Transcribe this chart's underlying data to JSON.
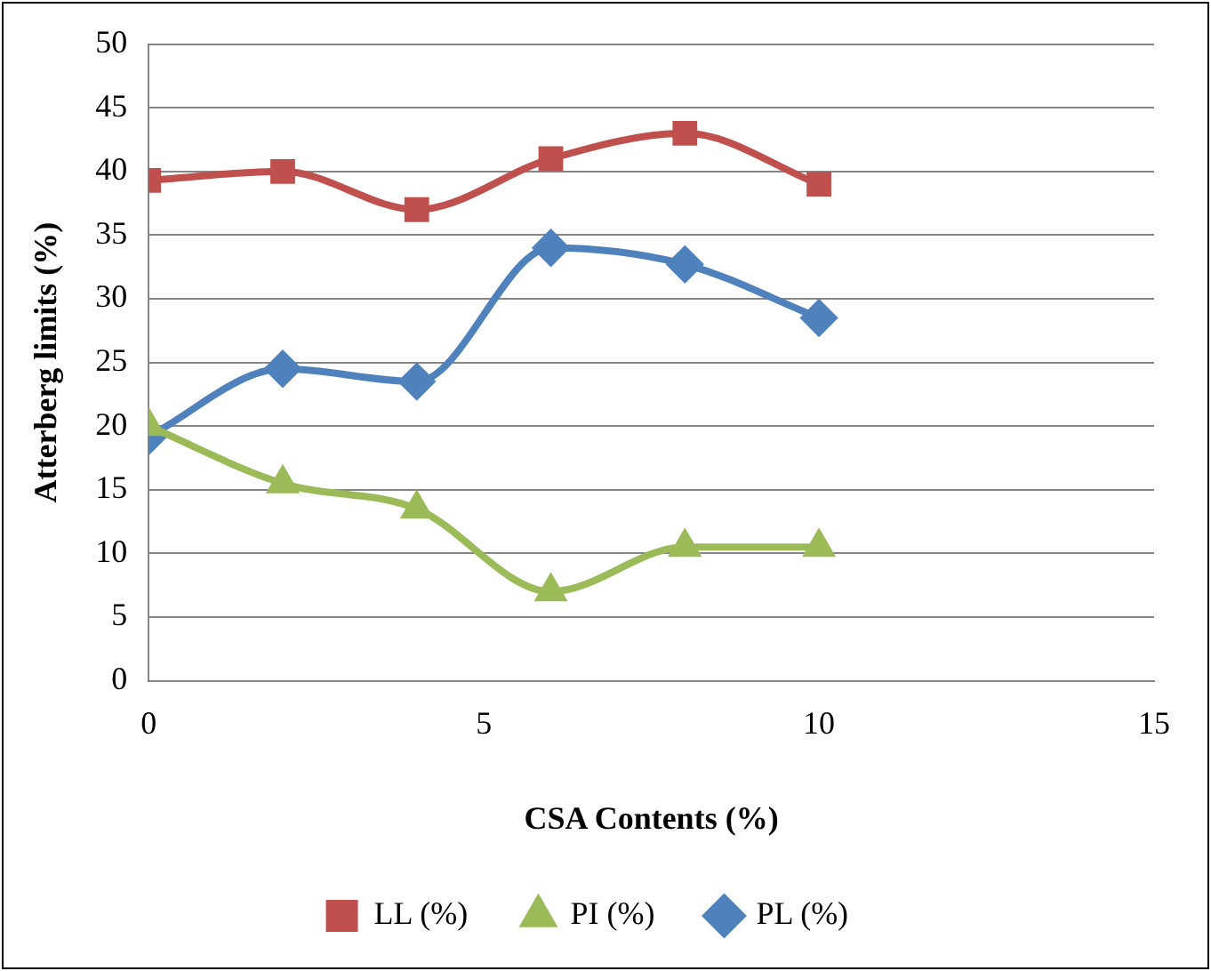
{
  "chart_data": {
    "type": "line",
    "xlabel": "CSA Contents (%)",
    "ylabel": "Atterberg limits (%)",
    "x": [
      0,
      2,
      4,
      6,
      8,
      10
    ],
    "series": [
      {
        "name": "LL (%)",
        "color": "#c0504d",
        "marker": "square",
        "values": [
          39.3,
          40,
          37,
          41,
          43,
          39
        ]
      },
      {
        "name": "PI (%)",
        "color": "#9bbb59",
        "marker": "triangle",
        "values": [
          20,
          15.5,
          13.5,
          7,
          10.5,
          10.5
        ]
      },
      {
        "name": "PL (%)",
        "color": "#4f81bd",
        "marker": "diamond",
        "values": [
          19.2,
          24.5,
          23.5,
          34,
          32.7,
          28.5
        ]
      }
    ],
    "xlim": [
      0,
      15
    ],
    "xticks": [
      0,
      5,
      10,
      15
    ],
    "ylim": [
      0,
      50
    ],
    "yticks": [
      0,
      5,
      10,
      15,
      20,
      25,
      30,
      35,
      40,
      45,
      50
    ],
    "grid": "y",
    "legend": "bottom"
  }
}
